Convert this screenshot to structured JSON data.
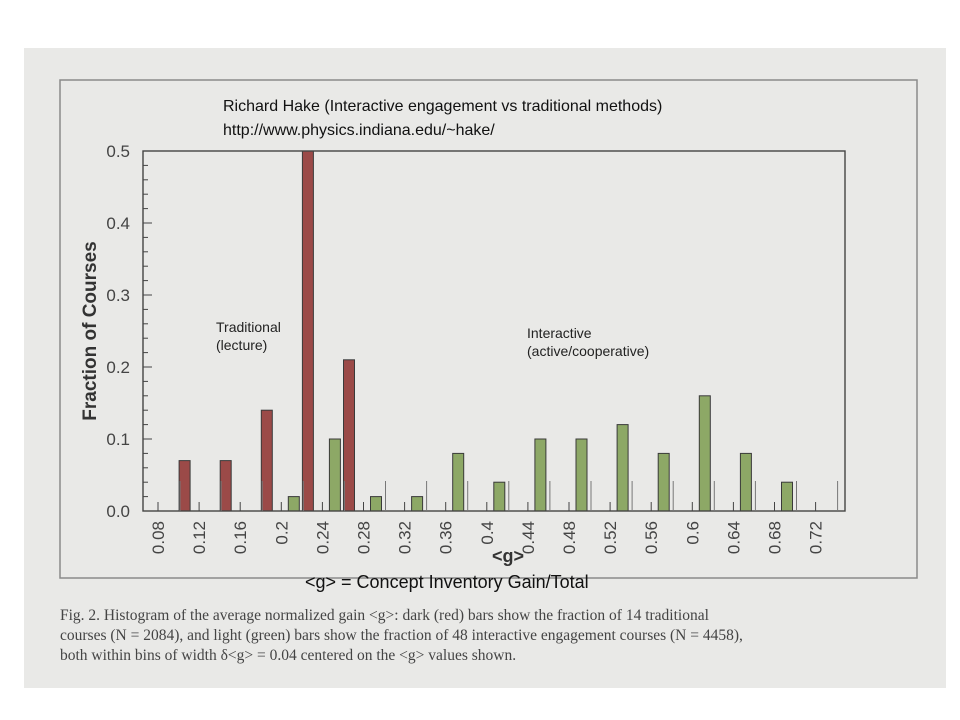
{
  "header": {
    "line1": "Richard Hake (Interactive engagement vs traditional methods)",
    "line2": "http://www.physics.indiana.edu/~hake/"
  },
  "annotations": {
    "traditional": [
      "Traditional",
      "(lecture)"
    ],
    "interactive": [
      "Interactive",
      "(active/cooperative)"
    ]
  },
  "footer_note": "<g> = Concept Inventory Gain/Total",
  "caption": {
    "line1": "Fig. 2.  Histogram of the average normalized gain <g>:  dark (red) bars show the fraction of 14 traditional",
    "line2": "courses (N = 2084), and light (green) bars show the fraction of 48 interactive engagement courses (N = 4458),",
    "line3": "both within bins of width δ<g> = 0.04 centered on the <g> values shown."
  },
  "colors": {
    "traditional": "#9b4a48",
    "interactive": "#8da866",
    "axis": "#444444"
  },
  "chart_data": {
    "type": "bar",
    "title": "",
    "xlabel": "<g>",
    "ylabel": "Fraction of Courses",
    "ylim": [
      0,
      0.5
    ],
    "yticks": [
      "0.0",
      "0.1",
      "0.2",
      "0.3",
      "0.4",
      "0.5"
    ],
    "categories": [
      "0.08",
      "0.12",
      "0.16",
      "0.2",
      "0.24",
      "0.28",
      "0.32",
      "0.36",
      "0.4",
      "0.44",
      "0.48",
      "0.52",
      "0.56",
      "0.6",
      "0.64",
      "0.68",
      "0.72"
    ],
    "series": [
      {
        "name": "Traditional",
        "values": [
          0,
          0.07,
          0.07,
          0.14,
          0.5,
          0.21,
          0,
          0,
          0,
          0,
          0,
          0,
          0,
          0,
          0,
          0,
          0
        ]
      },
      {
        "name": "Interactive",
        "values": [
          0,
          0,
          0,
          0.02,
          0.1,
          0.02,
          0.02,
          0.08,
          0.04,
          0.1,
          0.1,
          0.12,
          0.08,
          0.16,
          0.08,
          0.04,
          0
        ]
      }
    ]
  }
}
